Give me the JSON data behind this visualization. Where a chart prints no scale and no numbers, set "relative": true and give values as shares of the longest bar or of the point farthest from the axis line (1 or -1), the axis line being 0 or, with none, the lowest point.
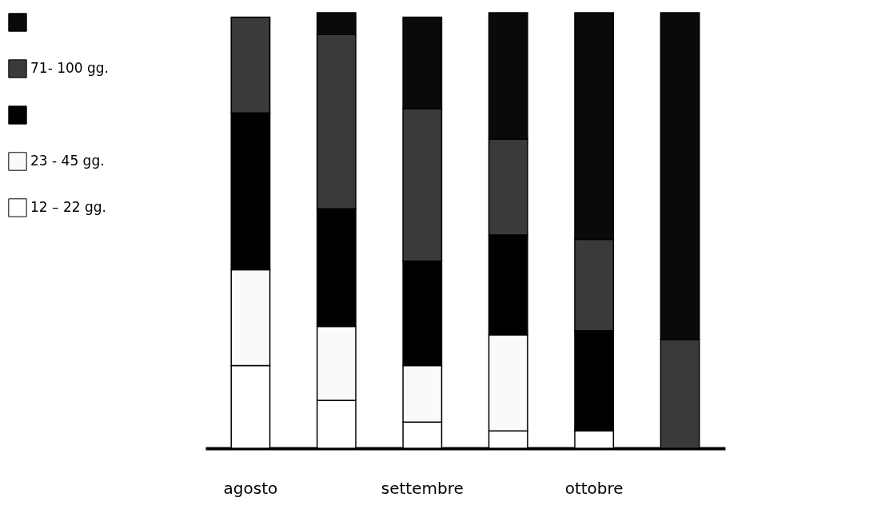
{
  "chart_data": {
    "type": "bar",
    "stacked": true,
    "relative": true,
    "legend": "left",
    "categories": [
      "agosto",
      null,
      "settembre",
      null,
      "ottobre",
      null
    ],
    "series": [
      {
        "name": "12 – 22 gg.",
        "color": "#ffffff",
        "values": [
          0.19,
          0.11,
          0.06,
          0.04,
          0.04,
          null
        ]
      },
      {
        "name": "23 - 45 gg.",
        "color": "#fafafa",
        "values": [
          0.22,
          0.17,
          0.13,
          0.22,
          null,
          null
        ]
      },
      {
        "color": "#000000",
        "values": [
          0.36,
          0.27,
          0.24,
          0.23,
          0.23,
          null
        ]
      },
      {
        "name": "71- 100 gg.",
        "color": "#3a3a3a",
        "values": [
          0.22,
          0.4,
          0.35,
          0.22,
          0.21,
          0.25
        ]
      },
      {
        "color": "#0a0a0a",
        "values": [
          null,
          0.05,
          0.21,
          0.29,
          0.52,
          0.75
        ]
      }
    ]
  }
}
